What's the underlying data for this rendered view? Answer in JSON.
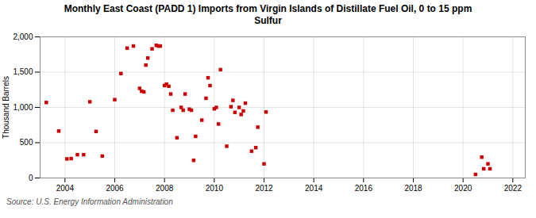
{
  "chart_data": {
    "type": "scatter",
    "title": "Monthly East Coast (PADD 1) Imports from Virgin Islands of Distillate Fuel Oil, 0 to 15 ppm\nSulfur",
    "ylabel": "Thousand Barrels",
    "source": "Source: U.S. Energy Information Administration",
    "color": "#cc0000",
    "marker": "square",
    "grid": true,
    "xlim": [
      2003.0,
      2022.5
    ],
    "ylim": [
      0,
      2000
    ],
    "xticks": [
      2004,
      2006,
      2008,
      2010,
      2012,
      2014,
      2016,
      2018,
      2020,
      2022
    ],
    "yticks": [
      0,
      500,
      {
        "value": 1000,
        "label": "1,000"
      },
      {
        "value": 1500,
        "label": "1,500"
      },
      {
        "value": 2000,
        "label": "2,000"
      }
    ],
    "x": [
      2003.25,
      2003.75,
      2004.08,
      2004.25,
      2004.5,
      2004.75,
      2005.0,
      2005.25,
      2005.5,
      2006.0,
      2006.25,
      2006.5,
      2006.75,
      2007.0,
      2007.08,
      2007.17,
      2007.25,
      2007.33,
      2007.5,
      2007.67,
      2007.75,
      2007.83,
      2008.0,
      2008.08,
      2008.17,
      2008.25,
      2008.33,
      2008.5,
      2008.67,
      2008.75,
      2008.83,
      2009.0,
      2009.08,
      2009.17,
      2009.25,
      2009.5,
      2009.67,
      2009.75,
      2009.83,
      2010.0,
      2010.08,
      2010.17,
      2010.25,
      2010.5,
      2010.67,
      2010.75,
      2010.83,
      2011.0,
      2011.08,
      2011.17,
      2011.25,
      2011.5,
      2011.67,
      2011.75,
      2012.0,
      2012.08,
      2020.5,
      2020.75,
      2020.83,
      2021.0,
      2021.08
    ],
    "values": [
      1070,
      665,
      270,
      275,
      330,
      330,
      1080,
      660,
      310,
      1110,
      1480,
      1840,
      1870,
      1270,
      1230,
      1220,
      1600,
      1700,
      1830,
      1880,
      1870,
      1870,
      1310,
      1330,
      1300,
      1190,
      960,
      570,
      1000,
      960,
      1190,
      975,
      960,
      250,
      590,
      820,
      1130,
      1420,
      1310,
      980,
      1000,
      765,
      1535,
      450,
      1010,
      1100,
      930,
      1000,
      900,
      950,
      1060,
      380,
      430,
      720,
      200,
      935,
      50,
      295,
      130,
      200,
      130
    ]
  }
}
